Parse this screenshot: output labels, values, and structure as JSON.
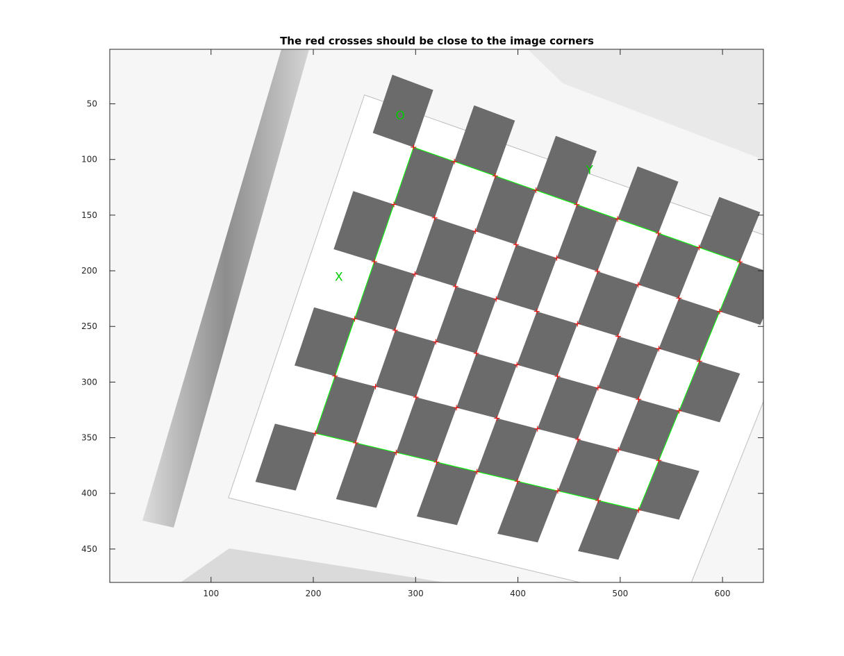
{
  "chart_data": {
    "type": "scatter",
    "title": "The red crosses should be close to the image corners",
    "xlabel": "",
    "ylabel": "",
    "xlim": [
      1,
      640
    ],
    "ylim": [
      1,
      480
    ],
    "y_reversed": true,
    "xticks": [
      100,
      200,
      300,
      400,
      500,
      600
    ],
    "yticks": [
      50,
      100,
      150,
      200,
      250,
      300,
      350,
      400,
      450
    ],
    "grid": false,
    "grid_corners": {
      "rows": 6,
      "cols": 9,
      "top_left": [
        298,
        89
      ],
      "top_right": [
        617,
        192
      ],
      "bottom_left": [
        202,
        346
      ],
      "bottom_right": [
        518,
        415
      ]
    },
    "board_extent": {
      "top_left": [
        250,
        42
      ],
      "top_right": [
        697,
        186
      ],
      "bottom_left": [
        117,
        404
      ],
      "bottom_right": [
        560,
        502
      ]
    },
    "annotations": [
      {
        "text": "O",
        "x": 285,
        "y": 64
      },
      {
        "text": "Y",
        "x": 470,
        "y": 113
      },
      {
        "text": "X",
        "x": 225,
        "y": 209
      }
    ],
    "colors": {
      "crosses": "#ff0000",
      "outline": "#00ff00",
      "labels": "#00cc00",
      "dark_square": "#6b6b6b"
    }
  }
}
